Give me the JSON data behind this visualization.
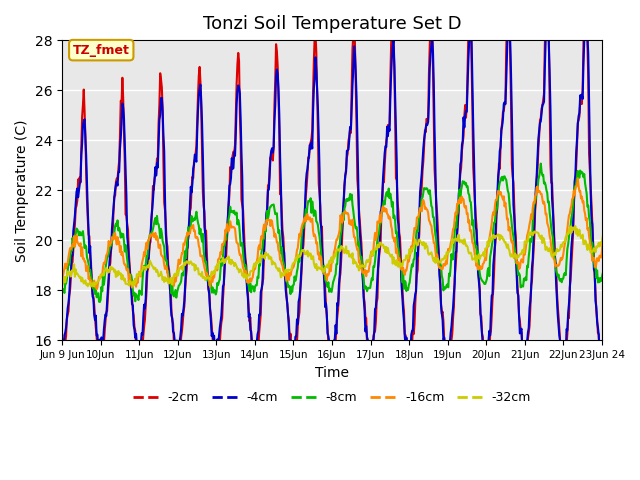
{
  "title": "Tonzi Soil Temperature Set D",
  "xlabel": "Time",
  "ylabel": "Soil Temperature (C)",
  "ylim": [
    16,
    28
  ],
  "yticks": [
    16,
    18,
    20,
    22,
    24,
    26,
    28
  ],
  "annotation_text": "TZ_fmet",
  "annotation_color": "#cc0000",
  "annotation_bg": "#ffffcc",
  "annotation_border": "#cc9900",
  "x_tick_labels": [
    "Jun 9 Jun",
    "10Jun",
    "11Jun",
    "12Jun",
    "13Jun",
    "14Jun",
    "15Jun",
    "16Jun",
    "17Jun",
    "18Jun",
    "19Jun",
    "20Jun",
    "21Jun",
    "22Jun",
    "23Jun 24"
  ],
  "legend_labels": [
    "-2cm",
    "-4cm",
    "-8cm",
    "-16cm",
    "-32cm"
  ],
  "legend_colors": [
    "#dd0000",
    "#0000cc",
    "#00bb00",
    "#ff8800",
    "#cccc00"
  ],
  "line_widths": [
    1.5,
    1.5,
    1.5,
    1.5,
    1.5
  ],
  "background_color": "#e8e8e8",
  "n_days": 15,
  "samples_per_day": 48
}
